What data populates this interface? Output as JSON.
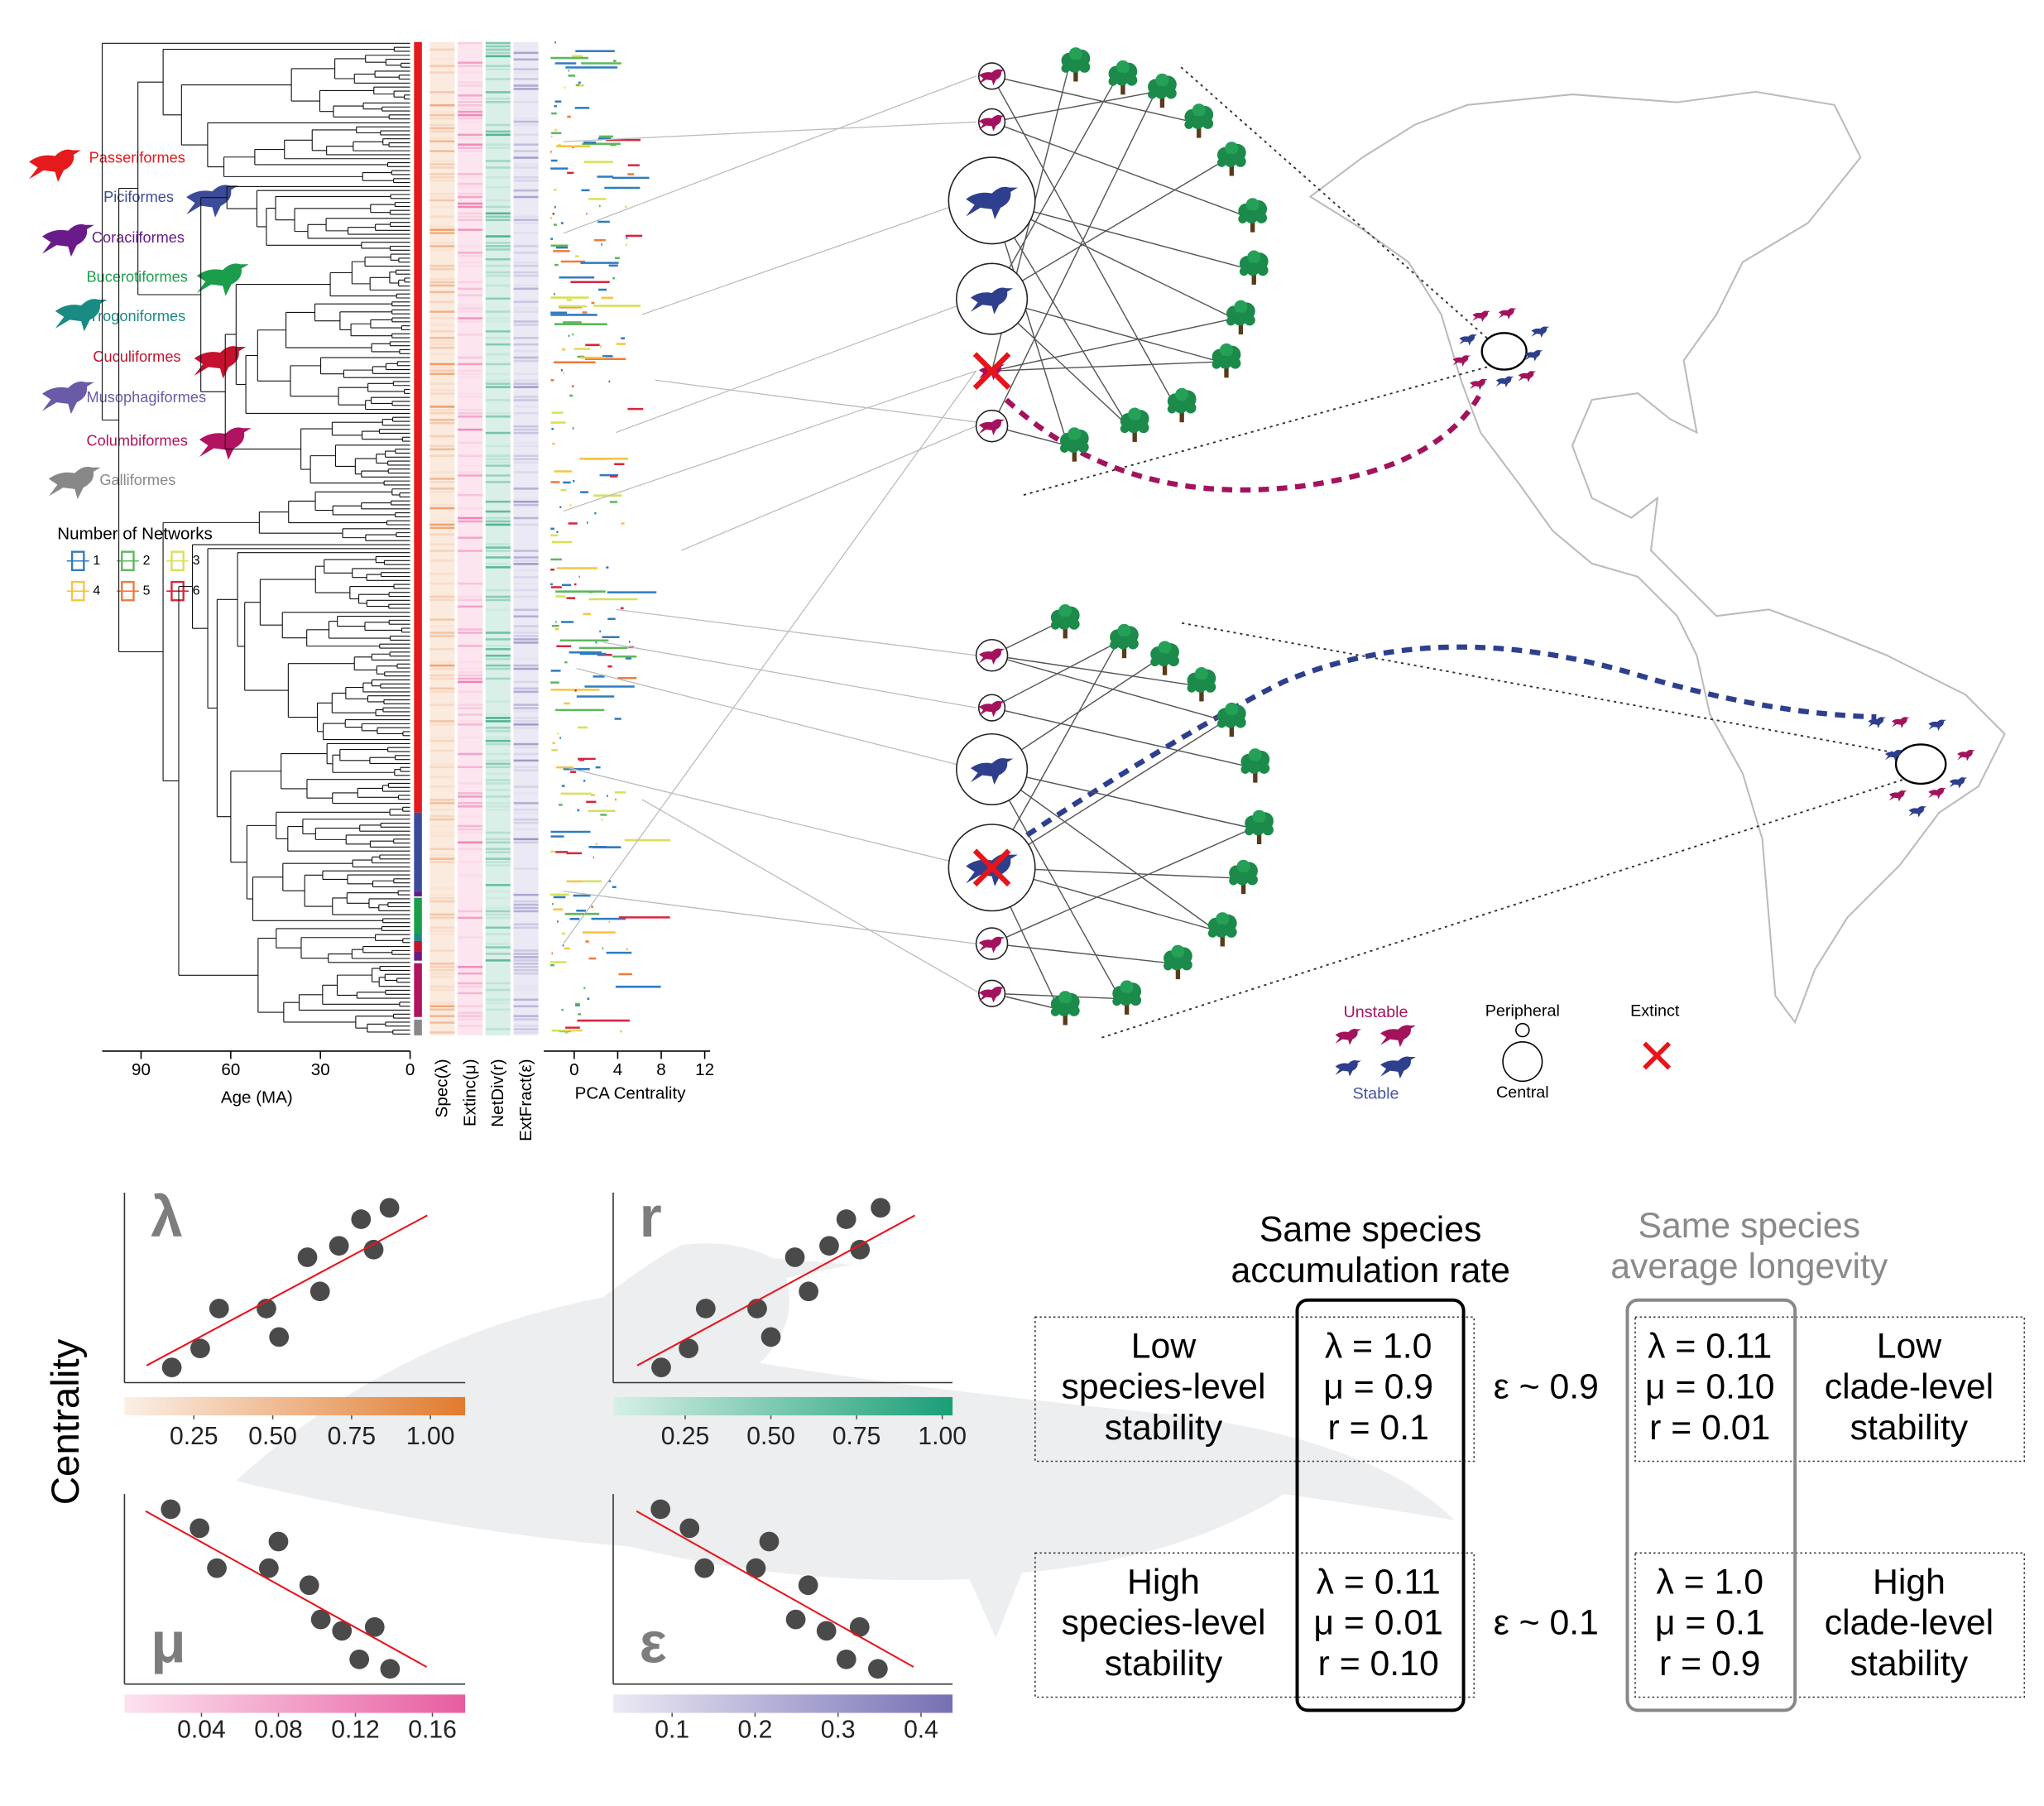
{
  "legend": {
    "orders": [
      {
        "name": "Passeriformes",
        "color": "#e41a1c"
      },
      {
        "name": "Piciformes",
        "color": "#3b4b9a"
      },
      {
        "name": "Coraciiformes",
        "color": "#6a1b8a"
      },
      {
        "name": "Bucerotiformes",
        "color": "#1b9e4b"
      },
      {
        "name": "Trogoniformes",
        "color": "#1a8a84"
      },
      {
        "name": "Cuculiformes",
        "color": "#c4122f"
      },
      {
        "name": "Musophagiformes",
        "color": "#6a5aa8"
      },
      {
        "name": "Columbiformes",
        "color": "#b0135f"
      },
      {
        "name": "Galliformes",
        "color": "#888888"
      }
    ],
    "networks_title": "Number of Networks",
    "networks": [
      {
        "label": "1",
        "color": "#2f7bc0"
      },
      {
        "label": "2",
        "color": "#5cb85c"
      },
      {
        "label": "3",
        "color": "#d8e05a"
      },
      {
        "label": "4",
        "color": "#f5c542"
      },
      {
        "label": "5",
        "color": "#f07a3a"
      },
      {
        "label": "6",
        "color": "#d7263d"
      }
    ]
  },
  "phylogeny": {
    "xlabel": "Age (MA)",
    "xlim": [
      103,
      0
    ],
    "xticks": [
      90,
      60,
      30,
      0
    ]
  },
  "rate_columns": [
    {
      "label": "Spec(λ)",
      "color": "#e8894a"
    },
    {
      "label": "Extinc(μ)",
      "color": "#ec6fa9"
    },
    {
      "label": "NetDiv(r)",
      "color": "#2ea57e"
    },
    {
      "label": "ExtFract(ε)",
      "color": "#8a84c0"
    }
  ],
  "pca": {
    "xlabel": "PCA Centrality",
    "xlim": [
      -2.8,
      12.5
    ],
    "xticks": [
      0,
      4,
      8,
      12
    ]
  },
  "network_legend": {
    "unstable": "Unstable",
    "stable": "Stable",
    "peripheral": "Peripheral",
    "central": "Central",
    "extinct": "Extinct"
  },
  "centrality_label": "Centrality",
  "chart_data": [
    {
      "type": "scatter",
      "label": "λ",
      "colorbar": [
        "#fbefe6",
        "#e07b2e"
      ],
      "x": [
        0.18,
        0.27,
        0.33,
        0.48,
        0.52,
        0.61,
        0.65,
        0.71,
        0.82,
        0.78,
        0.87
      ],
      "y": [
        0.08,
        0.18,
        0.39,
        0.39,
        0.24,
        0.66,
        0.48,
        0.72,
        0.7,
        0.86,
        0.92
      ],
      "trend": {
        "x": [
          0.1,
          0.99
        ],
        "y": [
          0.09,
          0.88
        ]
      },
      "xlim": [
        0.03,
        1.11
      ],
      "ylim": [
        0,
        1
      ],
      "xticks": [
        0.25,
        {
          "value": 0.5,
          "label": "0.50"
        },
        0.75,
        {
          "value": 1,
          "label": "1.00"
        }
      ]
    },
    {
      "type": "scatter",
      "label": "r",
      "colorbar": [
        "#d6f0e6",
        "#1a9e77"
      ],
      "x": [
        0.18,
        0.26,
        0.31,
        0.46,
        0.5,
        0.57,
        0.61,
        0.67,
        0.76,
        0.72,
        0.82
      ],
      "y": [
        0.08,
        0.18,
        0.39,
        0.39,
        0.24,
        0.66,
        0.48,
        0.72,
        0.7,
        0.86,
        0.92
      ],
      "trend": {
        "x": [
          0.11,
          0.92
        ],
        "y": [
          0.09,
          0.88
        ]
      },
      "xlim": [
        0.04,
        1.03
      ],
      "ylim": [
        0,
        1
      ],
      "xticks": [
        0.25,
        {
          "value": 0.5,
          "label": "0.50"
        },
        0.75,
        {
          "value": 1,
          "label": "1.00"
        }
      ]
    },
    {
      "type": "scatter",
      "label": "μ",
      "colorbar": [
        "#fce3ef",
        "#e85ca0"
      ],
      "x": [
        0.024,
        0.039,
        0.048,
        0.075,
        0.08,
        0.096,
        0.102,
        0.113,
        0.13,
        0.122,
        0.138
      ],
      "y": [
        0.92,
        0.82,
        0.61,
        0.61,
        0.75,
        0.52,
        0.34,
        0.28,
        0.3,
        0.13,
        0.08
      ],
      "trend": {
        "x": [
          0.011,
          0.157
        ],
        "y": [
          0.91,
          0.09
        ]
      },
      "xlim": [
        0.0,
        0.177
      ],
      "ylim": [
        0,
        1
      ],
      "xticks": [
        0.04,
        0.08,
        0.12,
        0.16
      ]
    },
    {
      "type": "scatter",
      "label": "ε",
      "colorbar": [
        "#eceaf5",
        "#7570b3"
      ],
      "x": [
        0.086,
        0.121,
        0.139,
        0.201,
        0.217,
        0.249,
        0.286,
        0.264,
        0.326,
        0.31,
        0.348
      ],
      "y": [
        0.92,
        0.82,
        0.61,
        0.61,
        0.75,
        0.34,
        0.28,
        0.52,
        0.3,
        0.13,
        0.08
      ],
      "trend": {
        "x": [
          0.057,
          0.391
        ],
        "y": [
          0.91,
          0.09
        ]
      },
      "xlim": [
        0.029,
        0.438
      ],
      "ylim": [
        0,
        1
      ],
      "xticks": [
        0.1,
        0.2,
        0.3,
        0.4
      ]
    }
  ],
  "table": {
    "col_a": [
      "Same species",
      "accumulation rate"
    ],
    "col_b": [
      "Same species",
      "average longevity"
    ],
    "rows": [
      {
        "left": [
          "Low",
          "species-level",
          "stability"
        ],
        "a": [
          "λ = 1.0",
          "μ = 0.9",
          "r = 0.1"
        ],
        "eps": "ε ~ 0.9",
        "b": [
          "λ = 0.11",
          "μ = 0.10",
          "r = 0.01"
        ],
        "right": [
          "Low",
          "clade-level",
          "stability"
        ]
      },
      {
        "left": [
          "High",
          "species-level",
          "stability"
        ],
        "a": [
          "λ = 0.11",
          "μ = 0.01",
          "r = 0.10"
        ],
        "eps": "ε ~ 0.1",
        "b": [
          "λ = 1.0",
          "μ = 0.1",
          "r = 0.9"
        ],
        "right": [
          "High",
          "clade-level",
          "stability"
        ]
      }
    ]
  }
}
